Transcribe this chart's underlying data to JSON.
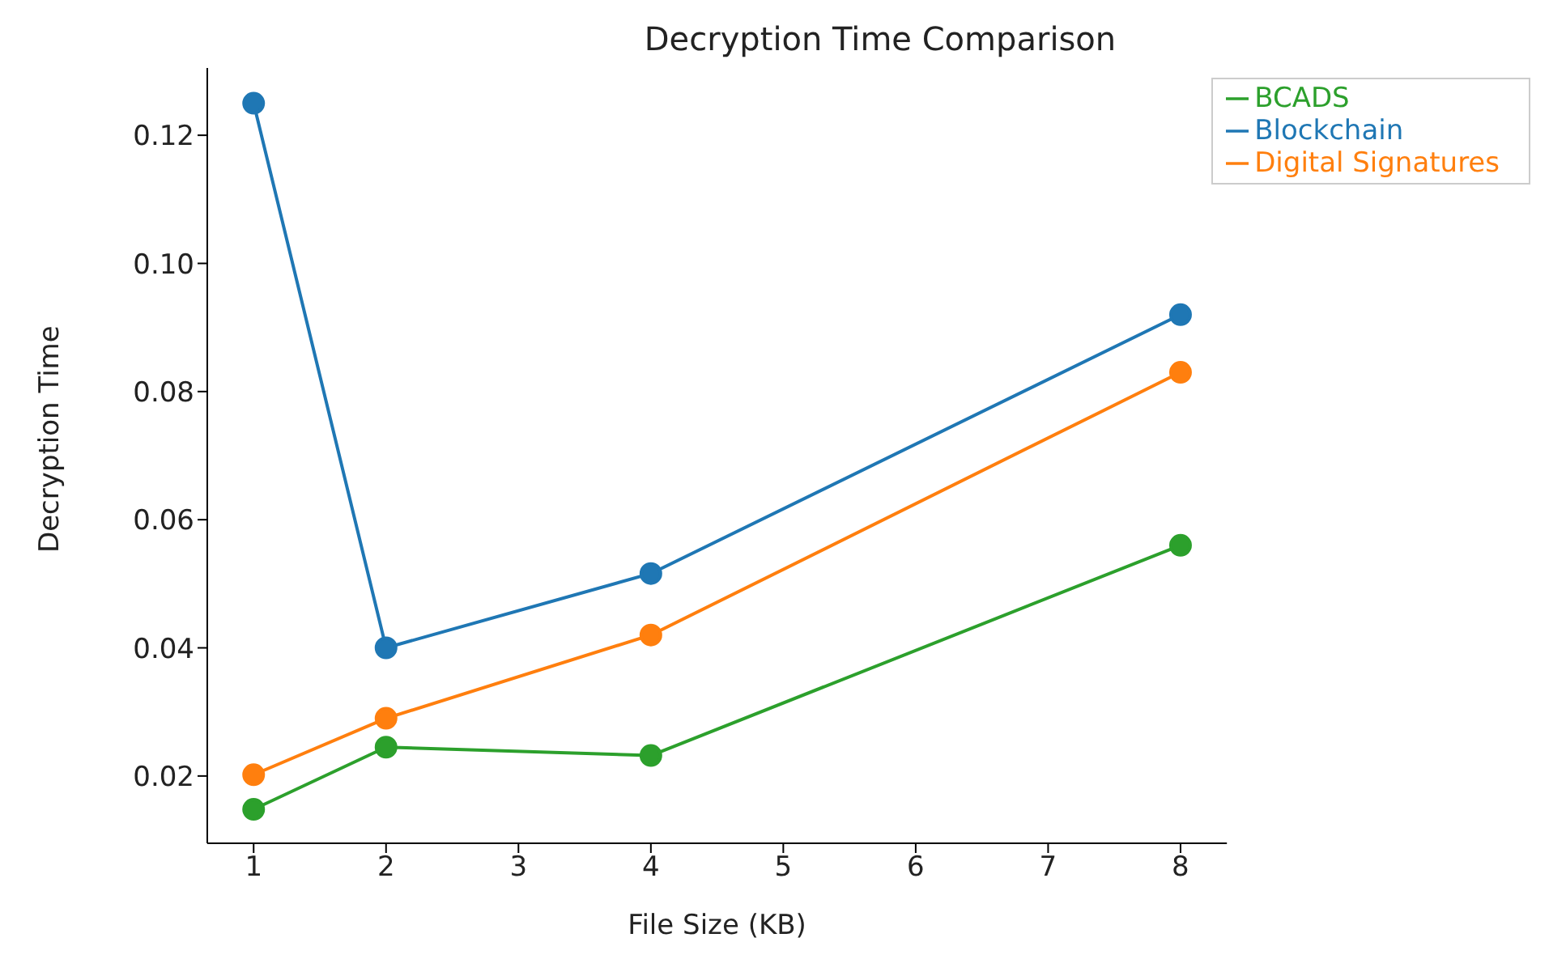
{
  "chart_data": {
    "type": "line",
    "title": "Decryption Time Comparison",
    "xlabel": "File Size (KB)",
    "ylabel": "Decryption Time",
    "x": [
      1,
      2,
      4,
      8
    ],
    "series": [
      {
        "name": "Blockchain",
        "color": "#1f77b4",
        "values": [
          0.125,
          0.04,
          0.0516,
          0.092
        ]
      },
      {
        "name": "Digital Signatures",
        "color": "#ff7f0e",
        "values": [
          0.0202,
          0.029,
          0.042,
          0.083
        ]
      },
      {
        "name": "BCADS",
        "color": "#2ca02c",
        "values": [
          0.0148,
          0.0245,
          0.0232,
          0.056
        ]
      }
    ],
    "xlim": [
      0.65,
      8.35
    ],
    "xticks": [
      1,
      2,
      3,
      4,
      5,
      6,
      7,
      8
    ],
    "ylim": [
      0.0095,
      0.1305
    ],
    "yticks": [
      {
        "value": 0.02,
        "label": "0.02"
      },
      {
        "value": 0.04,
        "label": "0.04"
      },
      {
        "value": 0.06,
        "label": "0.06"
      },
      {
        "value": 0.08,
        "label": "0.08"
      },
      {
        "value": 0.1,
        "label": "0.10"
      },
      {
        "value": 0.12,
        "label": "0.12"
      }
    ],
    "marker": "circle",
    "legend": "top right",
    "grid": false
  }
}
